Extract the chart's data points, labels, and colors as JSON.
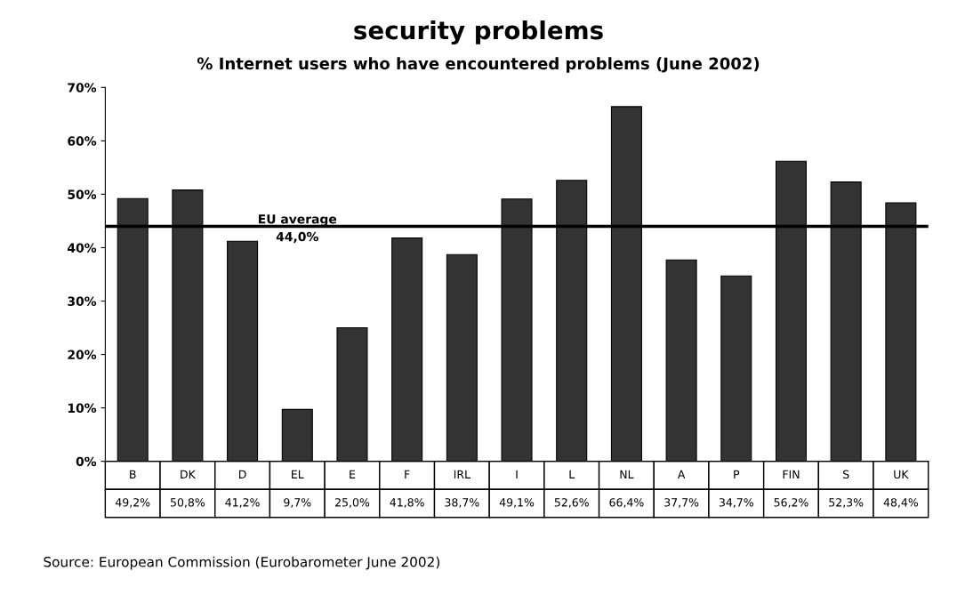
{
  "chart_data": {
    "type": "bar",
    "title": "security problems",
    "subtitle": "% Internet users who have encountered problems (June 2002)",
    "categories": [
      "B",
      "DK",
      "D",
      "EL",
      "E",
      "F",
      "IRL",
      "I",
      "L",
      "NL",
      "A",
      "P",
      "FIN",
      "S",
      "UK"
    ],
    "values": [
      49.2,
      50.8,
      41.2,
      9.7,
      25.0,
      41.8,
      38.7,
      49.1,
      52.6,
      66.4,
      37.7,
      34.7,
      56.2,
      52.3,
      48.4
    ],
    "value_labels": [
      "49,2%",
      "50,8%",
      "41,2%",
      "9,7%",
      "25,0%",
      "41,8%",
      "38,7%",
      "49,1%",
      "52,6%",
      "66,4%",
      "37,7%",
      "34,7%",
      "56,2%",
      "52,3%",
      "48,4%"
    ],
    "color": "#333333",
    "ylim": [
      0,
      70
    ],
    "yticks": [
      {
        "value": 0,
        "label": "0%"
      },
      {
        "value": 10,
        "label": "10%"
      },
      {
        "value": 20,
        "label": "20%"
      },
      {
        "value": 30,
        "label": "30%"
      },
      {
        "value": 40,
        "label": "40%"
      },
      {
        "value": 50,
        "label": "50%"
      },
      {
        "value": 60,
        "label": "60%"
      },
      {
        "value": 70,
        "label": "70%"
      }
    ],
    "ref_lines": [
      {
        "axis": "y",
        "value": 44.0,
        "label": "EU average\n44,0%",
        "color": "#000000"
      }
    ],
    "grid": false,
    "legend": false,
    "annotations": [
      "Source: European Commission (Eurobarometer June 2002)"
    ]
  }
}
